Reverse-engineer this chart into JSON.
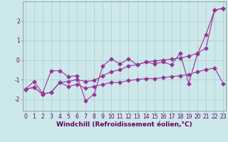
{
  "xlabel": "Windchill (Refroidissement éolien,°C)",
  "background_color": "#cce8ea",
  "grid_color": "#aacccc",
  "line_color": "#993399",
  "x_data": [
    0,
    1,
    2,
    3,
    4,
    5,
    6,
    7,
    8,
    9,
    10,
    11,
    12,
    13,
    14,
    15,
    16,
    17,
    18,
    19,
    20,
    21,
    22,
    23
  ],
  "y_series1": [
    -1.5,
    -1.1,
    -1.7,
    -0.55,
    -0.55,
    -0.85,
    -0.8,
    -2.1,
    -1.75,
    -0.3,
    0.05,
    -0.2,
    0.05,
    -0.25,
    -0.1,
    -0.2,
    -0.1,
    -0.25,
    0.35,
    -1.2,
    0.3,
    1.3,
    2.55,
    2.65
  ],
  "y_series2": [
    -1.5,
    -1.4,
    -1.75,
    -1.65,
    -1.15,
    -1.35,
    -1.25,
    -1.45,
    -1.35,
    -1.25,
    -1.15,
    -1.15,
    -1.05,
    -1.0,
    -0.95,
    -0.95,
    -0.9,
    -0.85,
    -0.8,
    -0.75,
    -0.6,
    -0.5,
    -0.4,
    -1.2
  ],
  "y_series3": [
    -1.5,
    -1.4,
    -1.75,
    -1.65,
    -1.15,
    -1.1,
    -1.0,
    -1.1,
    -1.05,
    -0.8,
    -0.6,
    -0.5,
    -0.3,
    -0.25,
    -0.1,
    -0.05,
    0.0,
    0.05,
    0.1,
    0.2,
    0.35,
    0.6,
    2.55,
    2.65
  ],
  "xlim": [
    0,
    23
  ],
  "ylim": [
    -2.6,
    3.0
  ],
  "xticks": [
    0,
    1,
    2,
    3,
    4,
    5,
    6,
    7,
    8,
    9,
    10,
    11,
    12,
    13,
    14,
    15,
    16,
    17,
    18,
    19,
    20,
    21,
    22,
    23
  ],
  "yticks": [
    -2,
    -1,
    0,
    1,
    2
  ],
  "tick_fontsize": 5.5,
  "xlabel_fontsize": 6.5,
  "markersize": 2.5
}
